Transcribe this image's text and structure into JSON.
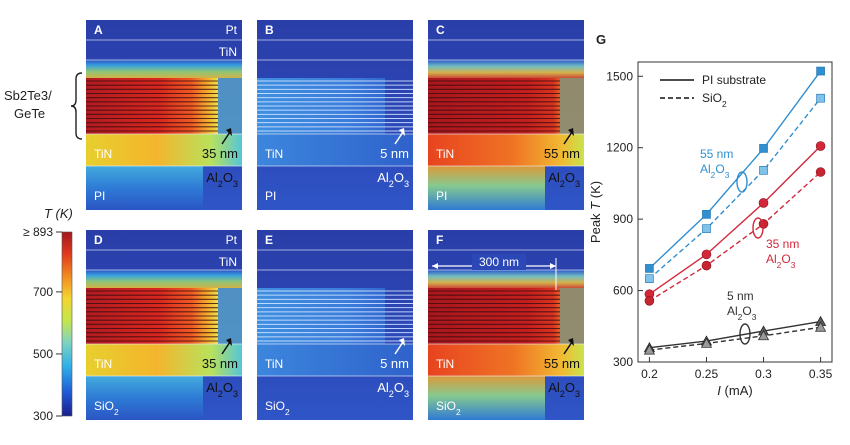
{
  "colorbar": {
    "title": "T (K)",
    "ticks": [
      {
        "label": "≥ 893",
        "value": 893
      },
      {
        "label": "700",
        "value": 700
      },
      {
        "label": "500",
        "value": 500
      },
      {
        "label": "300",
        "value": 300
      }
    ],
    "colors": [
      "#1a1f8c",
      "#1f5bd6",
      "#2fb0e8",
      "#7fd4c0",
      "#c6e64a",
      "#f4d430",
      "#f28b22",
      "#e03a1e",
      "#a3171c"
    ]
  },
  "stack_label": [
    "Sb2Te3/",
    "GeTe"
  ],
  "panels": [
    {
      "id": "A",
      "top_label": "Pt",
      "mid_label": "TiN",
      "bottom_label": "TiN",
      "substrate": "PI",
      "thickness": "35 nm",
      "oxide": "Al2O3"
    },
    {
      "id": "B",
      "top_label": "",
      "mid_label": "",
      "bottom_label": "TiN",
      "substrate": "PI",
      "thickness": "5 nm",
      "oxide": "Al2O3"
    },
    {
      "id": "C",
      "top_label": "",
      "mid_label": "",
      "bottom_label": "TiN",
      "substrate": "PI",
      "thickness": "55 nm",
      "oxide": "Al2O3"
    },
    {
      "id": "D",
      "top_label": "Pt",
      "mid_label": "TiN",
      "bottom_label": "TiN",
      "substrate": "SiO2",
      "thickness": "35 nm",
      "oxide": "Al2O3"
    },
    {
      "id": "E",
      "top_label": "",
      "mid_label": "",
      "bottom_label": "TiN",
      "substrate": "SiO2",
      "thickness": "5 nm",
      "oxide": "Al2O3"
    },
    {
      "id": "F",
      "top_label": "",
      "mid_label": "",
      "bottom_label": "TiN",
      "substrate": "SiO2",
      "thickness": "55 nm",
      "oxide": "Al2O3",
      "scale": "300 nm"
    }
  ],
  "chart_data": {
    "type": "line",
    "panel": "G",
    "xlabel": "I (mA)",
    "ylabel": "Peak T (K)",
    "xlim": [
      0.19,
      0.36
    ],
    "ylim": [
      300,
      1560
    ],
    "xticks": [
      0.2,
      0.25,
      0.3,
      0.35
    ],
    "xtick_labels": [
      "0.2",
      "0.25",
      "0.3",
      "0.35"
    ],
    "yticks": [
      300,
      600,
      900,
      1200,
      1500
    ],
    "ytick_labels": [
      "300",
      "600",
      "900",
      "1200",
      "1500"
    ],
    "x": [
      0.2,
      0.25,
      0.3,
      0.35
    ],
    "legend": [
      {
        "label": "PI substrate",
        "style": "solid"
      },
      {
        "label": "SiO2",
        "style": "dashed"
      }
    ],
    "series": [
      {
        "name": "55 nm Al2O3, PI substrate",
        "group": "55 nm",
        "color": "#2f8fd0",
        "marker": "square",
        "style": "solid",
        "values": [
          693,
          920,
          1197,
          1522
        ]
      },
      {
        "name": "55 nm Al2O3, SiO2",
        "group": "55 nm",
        "color": "#2f8fd0",
        "marker": "square",
        "style": "dashed",
        "values": [
          650,
          860,
          1105,
          1408
        ]
      },
      {
        "name": "35 nm Al2O3, PI substrate",
        "group": "35 nm",
        "color": "#d2283a",
        "marker": "circle",
        "style": "solid",
        "values": [
          585,
          752,
          968,
          1207
        ]
      },
      {
        "name": "35 nm Al2O3, SiO2",
        "group": "35 nm",
        "color": "#d2283a",
        "marker": "circle",
        "style": "dashed",
        "values": [
          557,
          705,
          880,
          1098
        ]
      },
      {
        "name": "5 nm Al2O3, PI substrate",
        "group": "5 nm",
        "color": "#333333",
        "marker": "triangle",
        "style": "solid",
        "values": [
          360,
          388,
          430,
          470
        ]
      },
      {
        "name": "5 nm Al2O3, SiO2",
        "group": "5 nm",
        "color": "#333333",
        "marker": "triangle",
        "style": "dashed",
        "values": [
          350,
          378,
          410,
          446
        ]
      }
    ],
    "annotations": [
      {
        "group": "55 nm",
        "line1": "55 nm",
        "line2": "Al2O3",
        "color": "#2f8fd0"
      },
      {
        "group": "35 nm",
        "line1": "35 nm",
        "line2": "Al2O3",
        "color": "#d2283a"
      },
      {
        "group": "5 nm",
        "line1": "5 nm",
        "line2": "Al2O3",
        "color": "#333333"
      }
    ]
  }
}
